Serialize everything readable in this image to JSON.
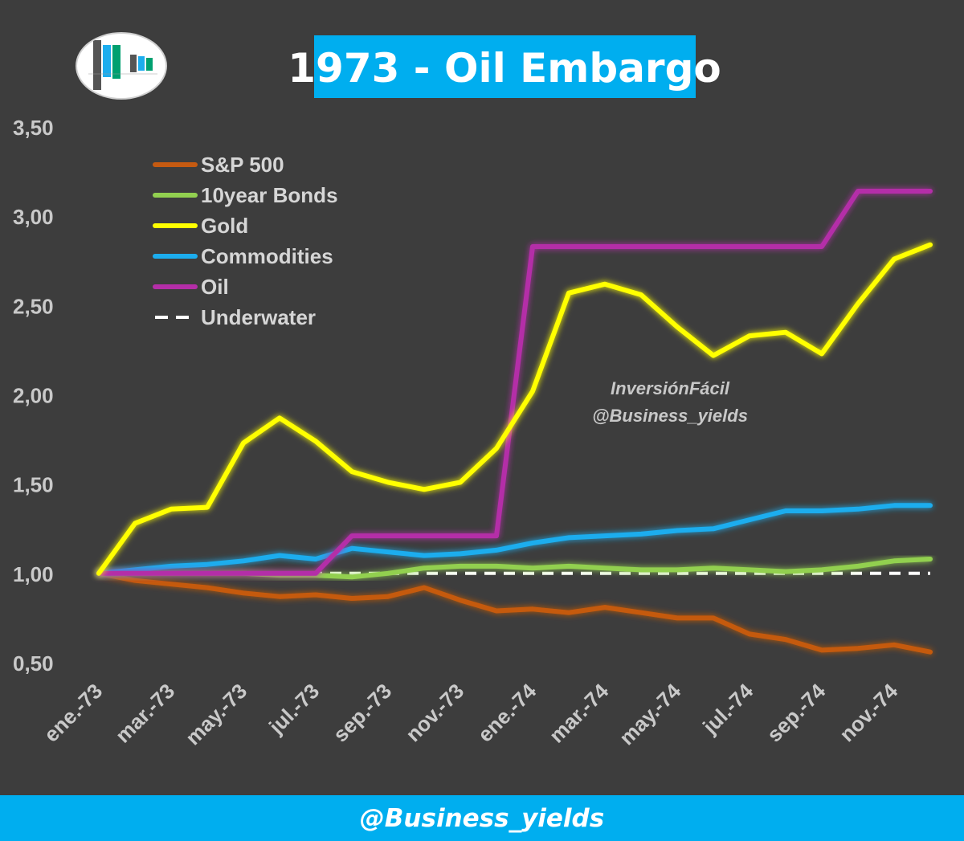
{
  "chart_data": {
    "type": "line",
    "title": "1973 - Oil Embargo",
    "watermark": [
      "InversiónFácil",
      "@Business_yields"
    ],
    "footer": "@Business_yields",
    "ylim": [
      0.5,
      3.5
    ],
    "yticks": [
      0.5,
      1.0,
      1.5,
      2.0,
      2.5,
      3.0,
      3.5
    ],
    "ytick_labels": [
      "0,50",
      "1,00",
      "1,50",
      "2,00",
      "2,50",
      "3,00",
      "3,50"
    ],
    "x_labels": [
      "ene.-73",
      "mar.-73",
      "may.-73",
      "jul.-73",
      "sep.-73",
      "nov.-73",
      "ene.-74",
      "mar.-74",
      "may.-74",
      "jul.-74",
      "sep.-74",
      "nov.-74"
    ],
    "num_points": 24,
    "series": [
      {
        "name": "S&P 500",
        "color": "#c55a11",
        "dash": false,
        "values": [
          1.0,
          0.96,
          0.94,
          0.92,
          0.89,
          0.87,
          0.88,
          0.86,
          0.87,
          0.92,
          0.85,
          0.79,
          0.8,
          0.78,
          0.81,
          0.78,
          0.75,
          0.75,
          0.66,
          0.63,
          0.57,
          0.58,
          0.6,
          0.56
        ]
      },
      {
        "name": "10year Bonds",
        "color": "#92d050",
        "dash": false,
        "values": [
          1.0,
          1.0,
          1.0,
          1.0,
          1.0,
          0.99,
          0.99,
          0.98,
          1.0,
          1.03,
          1.04,
          1.04,
          1.03,
          1.04,
          1.03,
          1.02,
          1.02,
          1.03,
          1.02,
          1.01,
          1.02,
          1.04,
          1.07,
          1.08
        ]
      },
      {
        "name": "Gold",
        "color": "#ffff00",
        "dash": false,
        "values": [
          1.0,
          1.28,
          1.36,
          1.37,
          1.73,
          1.87,
          1.74,
          1.57,
          1.51,
          1.47,
          1.51,
          1.7,
          2.02,
          2.57,
          2.62,
          2.56,
          2.38,
          2.22,
          2.33,
          2.35,
          2.23,
          2.51,
          2.76,
          2.84
        ]
      },
      {
        "name": "Commodities",
        "color": "#1cadee",
        "dash": false,
        "values": [
          1.0,
          1.02,
          1.04,
          1.05,
          1.07,
          1.1,
          1.08,
          1.14,
          1.12,
          1.1,
          1.11,
          1.13,
          1.17,
          1.2,
          1.21,
          1.22,
          1.24,
          1.25,
          1.3,
          1.35,
          1.35,
          1.36,
          1.38,
          1.38
        ]
      },
      {
        "name": "Oil",
        "color": "#b42ea8",
        "dash": false,
        "values": [
          1.0,
          1.0,
          1.0,
          1.0,
          1.0,
          1.0,
          1.0,
          1.21,
          1.21,
          1.21,
          1.21,
          1.21,
          2.83,
          2.83,
          2.83,
          2.83,
          2.83,
          2.83,
          2.83,
          2.83,
          2.83,
          3.14,
          3.14,
          3.14
        ]
      },
      {
        "name": "Underwater",
        "color": "#ffffff",
        "dash": true,
        "values": [
          1.0,
          1.0,
          1.0,
          1.0,
          1.0,
          1.0,
          1.0,
          1.0,
          1.0,
          1.0,
          1.0,
          1.0,
          1.0,
          1.0,
          1.0,
          1.0,
          1.0,
          1.0,
          1.0,
          1.0,
          1.0,
          1.0,
          1.0,
          1.0
        ]
      }
    ]
  }
}
